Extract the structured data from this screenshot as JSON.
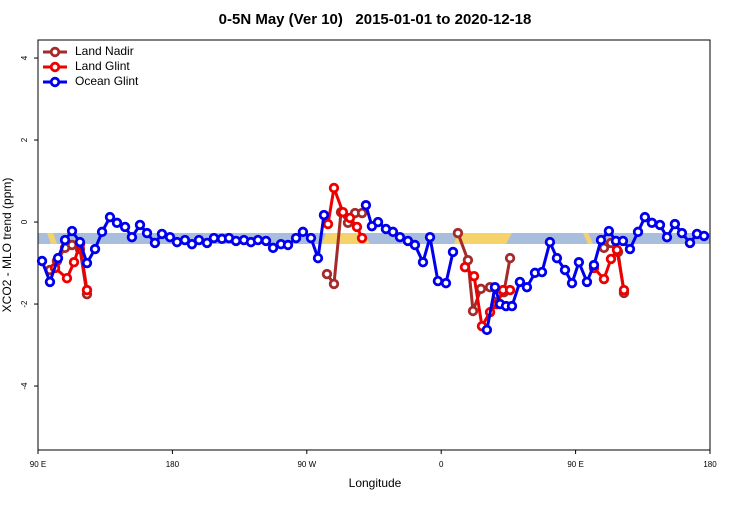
{
  "chart_data": {
    "type": "line",
    "title": "0-5N May (Ver 10)   2015-01-01 to 2020-12-18",
    "x_label": "Longitude",
    "y_label": "XCO2 - MLO trend (ppm)",
    "xlim": [
      90,
      540
    ],
    "xticks": [
      {
        "value": 90,
        "label": "90 E"
      },
      {
        "value": 180,
        "label": "180"
      },
      {
        "value": 270,
        "label": "90 W"
      },
      {
        "value": 360,
        "label": "0"
      },
      {
        "value": 450,
        "label": "90 E"
      },
      {
        "value": 540,
        "label": "180"
      }
    ],
    "ylim": [
      -5.56,
      4.44
    ],
    "yticks": [
      4,
      2,
      0,
      -2,
      -4
    ],
    "legend": "top-left",
    "series": [
      {
        "name": "Land Nadir",
        "color": "#a52a2a",
        "x": [
          98.0,
          102.7,
          108.1,
          112.8,
          118.1,
          122.8,
          null,
          283.5,
          288.2,
          292.9,
          297.6,
          302.3,
          307.0,
          null,
          371.2,
          377.9,
          381.3,
          386.6,
          392.7,
          397.4,
          402.0,
          406.1,
          null,
          469.0,
          473.7,
          478.4,
          482.4
        ],
        "values": [
          -1.17,
          -0.95,
          -0.63,
          -0.56,
          -0.66,
          -1.76,
          null,
          -1.27,
          -1.51,
          0.24,
          -0.02,
          0.22,
          0.22,
          null,
          -0.27,
          -0.93,
          -2.17,
          -1.63,
          -1.59,
          -1.78,
          -1.71,
          -0.88,
          null,
          -0.63,
          -0.51,
          -0.73,
          -1.73
        ]
      },
      {
        "name": "Land Glint",
        "color": "#ee0000",
        "x": [
          101.4,
          109.4,
          114.1,
          118.1,
          122.8,
          null,
          284.2,
          288.2,
          294.2,
          298.9,
          303.6,
          307.0,
          null,
          375.9,
          382.0,
          387.3,
          392.7,
          397.4,
          401.4,
          406.1,
          null,
          462.3,
          469.0,
          473.7,
          477.7,
          482.4
        ],
        "values": [
          -1.12,
          -1.37,
          -0.98,
          -0.54,
          -1.66,
          null,
          -0.05,
          0.83,
          0.24,
          0.1,
          -0.12,
          -0.39,
          null,
          -1.1,
          -1.32,
          -2.54,
          -2.2,
          -2.0,
          -1.66,
          -1.66,
          null,
          -1.12,
          -1.39,
          -0.9,
          -0.68,
          -1.66
        ]
      },
      {
        "name": "Ocean Glint",
        "color": "#0000ee",
        "x": [
          92.7,
          98.0,
          103.4,
          108.1,
          112.8,
          118.1,
          122.8,
          128.2,
          132.9,
          138.2,
          142.9,
          148.3,
          152.9,
          158.3,
          163.0,
          168.3,
          173.0,
          178.4,
          183.1,
          188.4,
          193.1,
          197.8,
          203.2,
          207.8,
          213.2,
          217.9,
          222.6,
          227.9,
          232.6,
          237.3,
          242.7,
          247.4,
          252.7,
          257.4,
          262.8,
          267.4,
          272.8,
          277.5,
          281.5,
          null,
          309.6,
          313.6,
          317.7,
          323.0,
          327.7,
          332.4,
          337.7,
          342.4,
          347.8,
          352.5,
          357.8,
          363.2,
          367.9,
          null,
          390.6,
          396.0,
          399.4,
          403.4,
          407.4,
          412.7,
          417.4,
          422.8,
          427.5,
          432.8,
          437.5,
          442.9,
          447.6,
          452.2,
          457.6,
          462.3,
          467.0,
          472.3,
          477.0,
          481.7,
          486.4,
          491.8,
          496.4,
          501.1,
          506.5,
          511.2,
          516.5,
          521.2,
          526.6,
          531.3,
          536.0
        ],
        "values": [
          -0.95,
          -1.46,
          -0.88,
          -0.44,
          -0.22,
          -0.49,
          -1.0,
          -0.66,
          -0.24,
          0.12,
          -0.02,
          -0.12,
          -0.37,
          -0.07,
          -0.27,
          -0.51,
          -0.29,
          -0.37,
          -0.49,
          -0.44,
          -0.54,
          -0.44,
          -0.51,
          -0.39,
          -0.41,
          -0.39,
          -0.46,
          -0.44,
          -0.49,
          -0.44,
          -0.46,
          -0.63,
          -0.54,
          -0.56,
          -0.39,
          -0.24,
          -0.39,
          -0.88,
          0.17,
          null,
          0.41,
          -0.1,
          0.0,
          -0.17,
          -0.24,
          -0.37,
          -0.46,
          -0.56,
          -0.98,
          -0.37,
          -1.44,
          -1.49,
          -0.73,
          null,
          -2.63,
          -1.59,
          -2.0,
          -2.05,
          -2.05,
          -1.46,
          -1.59,
          -1.24,
          -1.22,
          -0.49,
          -0.88,
          -1.17,
          -1.49,
          -0.98,
          -1.46,
          -1.05,
          -0.44,
          -0.22,
          -0.46,
          -0.46,
          -0.66,
          -0.24,
          0.12,
          -0.02,
          -0.07,
          -0.37,
          -0.05,
          -0.27,
          -0.51,
          -0.29,
          -0.34
        ]
      }
    ]
  }
}
